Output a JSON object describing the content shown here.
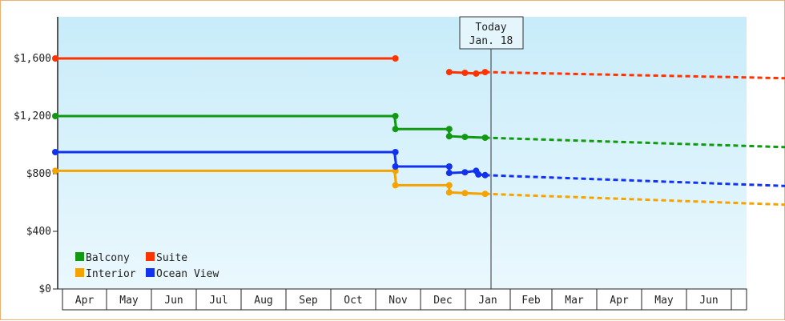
{
  "chart_data": {
    "type": "line",
    "step": true,
    "x_axis_labels": [
      "Apr",
      "May",
      "Jun",
      "Jul",
      "Aug",
      "Sep",
      "Oct",
      "Nov",
      "Dec",
      "Jan",
      "Feb",
      "Mar",
      "Apr",
      "May",
      "Jun"
    ],
    "y_ticks": [
      0,
      400,
      800,
      1200,
      1600
    ],
    "y_tick_labels": [
      "$0",
      "$400",
      "$800",
      "$1,200",
      "$1,600"
    ],
    "ylim": [
      0,
      1830
    ],
    "today_marker": {
      "line1": "Today",
      "line2": "Jan. 18"
    },
    "legend": [
      {
        "name": "Balcony",
        "color": "#119911"
      },
      {
        "name": "Suite",
        "color": "#ff3300"
      },
      {
        "name": "Interior",
        "color": "#f5a300"
      },
      {
        "name": "Ocean View",
        "color": "#1133ee"
      }
    ],
    "series": [
      {
        "name": "Balcony",
        "color": "#119911",
        "points": [
          [
            0,
            1200
          ],
          [
            7.58,
            1200
          ],
          [
            7.62,
            1110
          ],
          [
            8.78,
            1110
          ],
          [
            8.82,
            1060
          ],
          [
            9.15,
            1055
          ],
          [
            9.6,
            1050
          ]
        ],
        "markers": [
          [
            0,
            1200
          ],
          [
            7.6,
            1200
          ],
          [
            7.6,
            1110
          ],
          [
            8.8,
            1110
          ],
          [
            8.8,
            1060
          ],
          [
            9.15,
            1055
          ],
          [
            9.6,
            1050
          ]
        ],
        "forecast": [
          [
            9.6,
            1050
          ],
          [
            16.8,
            980
          ]
        ]
      },
      {
        "name": "Suite",
        "color": "#ff3300",
        "points": [
          [
            0,
            1600
          ],
          [
            7.6,
            1600
          ]
        ],
        "points2": [
          [
            8.8,
            1505
          ],
          [
            9.15,
            1500
          ],
          [
            9.4,
            1495
          ],
          [
            9.6,
            1505
          ]
        ],
        "markers": [
          [
            0,
            1600
          ],
          [
            7.6,
            1600
          ],
          [
            8.8,
            1505
          ],
          [
            9.15,
            1500
          ],
          [
            9.4,
            1495
          ],
          [
            9.6,
            1505
          ]
        ],
        "forecast": [
          [
            9.6,
            1505
          ],
          [
            16.8,
            1460
          ]
        ]
      },
      {
        "name": "Interior",
        "color": "#f5a300",
        "points": [
          [
            0,
            820
          ],
          [
            7.58,
            820
          ],
          [
            7.62,
            720
          ],
          [
            8.78,
            720
          ],
          [
            8.82,
            670
          ],
          [
            9.15,
            665
          ],
          [
            9.6,
            660
          ]
        ],
        "markers": [
          [
            0,
            820
          ],
          [
            7.6,
            820
          ],
          [
            7.6,
            720
          ],
          [
            8.8,
            720
          ],
          [
            8.8,
            670
          ],
          [
            9.15,
            665
          ],
          [
            9.6,
            660
          ]
        ],
        "forecast": [
          [
            9.6,
            660
          ],
          [
            16.8,
            580
          ]
        ]
      },
      {
        "name": "Ocean View",
        "color": "#1133ee",
        "points": [
          [
            0,
            950
          ],
          [
            7.58,
            950
          ],
          [
            7.62,
            850
          ],
          [
            8.78,
            850
          ],
          [
            8.82,
            805
          ],
          [
            9.15,
            810
          ],
          [
            9.4,
            820
          ],
          [
            9.45,
            795
          ],
          [
            9.6,
            790
          ]
        ],
        "markers": [
          [
            0,
            950
          ],
          [
            7.6,
            950
          ],
          [
            7.6,
            850
          ],
          [
            8.8,
            850
          ],
          [
            8.8,
            805
          ],
          [
            9.15,
            810
          ],
          [
            9.4,
            820
          ],
          [
            9.45,
            795
          ],
          [
            9.6,
            790
          ]
        ],
        "forecast": [
          [
            9.6,
            790
          ],
          [
            16.8,
            710
          ]
        ]
      }
    ]
  }
}
